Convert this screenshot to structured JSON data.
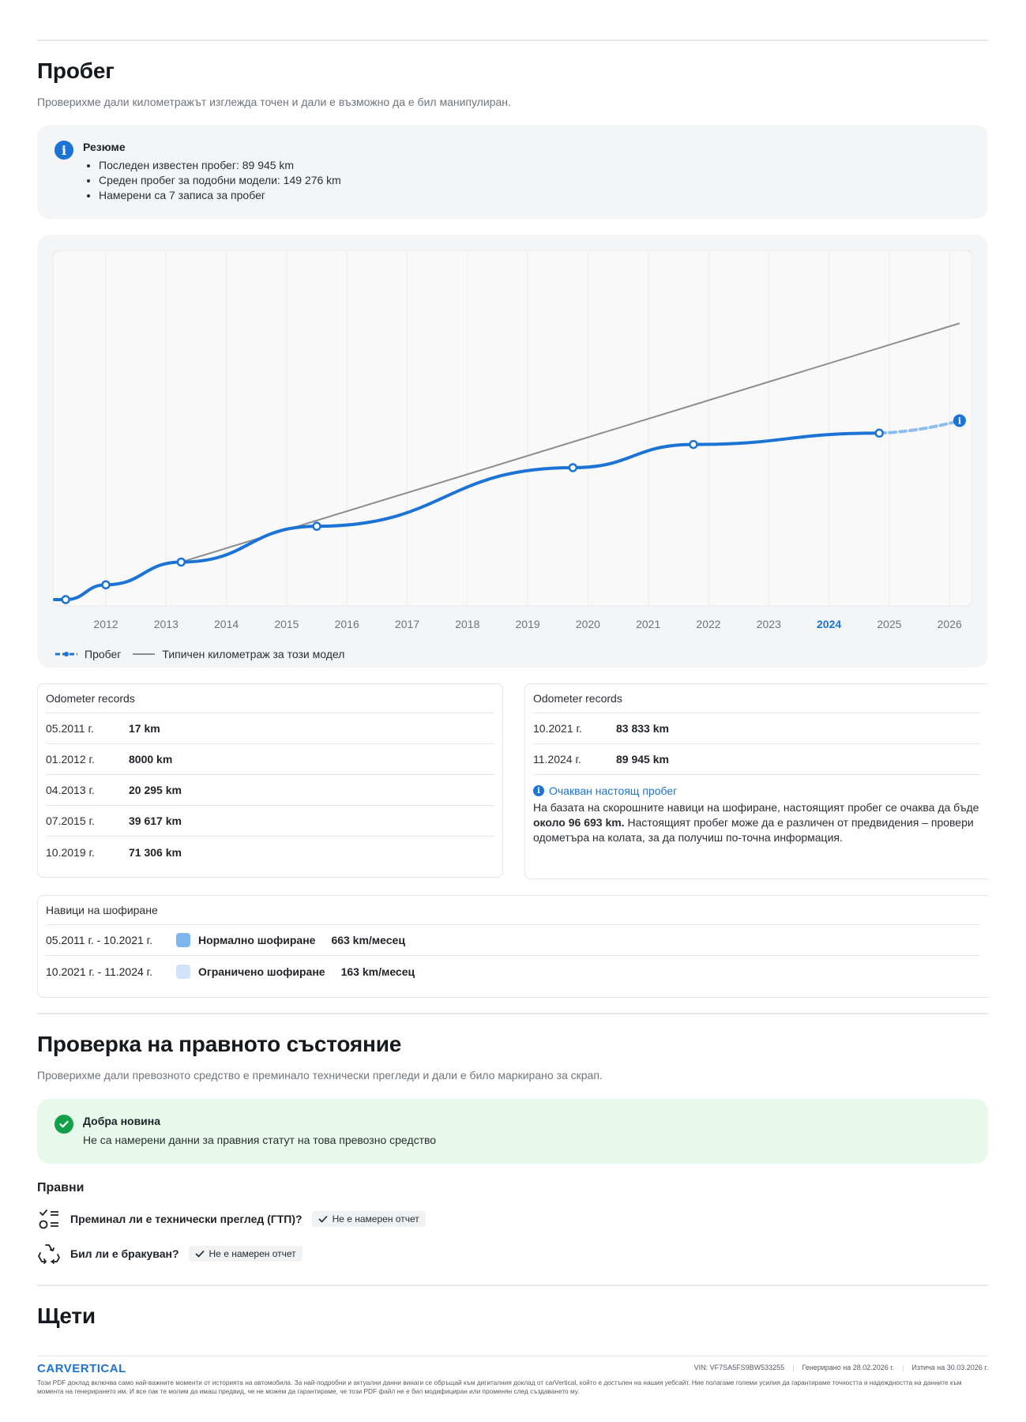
{
  "mileage": {
    "title": "Пробег",
    "subtitle": "Проверихме дали километражът изглежда точен и дали е възможно да е бил манипулиран.",
    "summary": {
      "title": "Резюме",
      "items": [
        "Последен известен пробег: 89 945 km",
        "Среден пробег за подобни модели: 149 276 km",
        "Намерени са 7 записа за пробег"
      ]
    },
    "chart_data": {
      "type": "line",
      "x_ticks": [
        "2012",
        "2013",
        "2014",
        "2015",
        "2016",
        "2017",
        "2018",
        "2019",
        "2020",
        "2021",
        "2022",
        "2023",
        "2024",
        "2025",
        "2026"
      ],
      "highlight_tick": "2024",
      "grid": true,
      "legend_placement": "bottom-left",
      "series": [
        {
          "name": "Пробег",
          "color": "#1c73d6",
          "points": [
            {
              "x": "2011-05",
              "y": 17
            },
            {
              "x": "2012-01",
              "y": 8000
            },
            {
              "x": "2013-04",
              "y": 20295
            },
            {
              "x": "2015-07",
              "y": 39617
            },
            {
              "x": "2019-10",
              "y": 71306
            },
            {
              "x": "2021-10",
              "y": 83833
            },
            {
              "x": "2024-11",
              "y": 89945
            }
          ],
          "projected": {
            "x": "2026-03",
            "y": 96693
          }
        },
        {
          "name": "Типичен километраж за този модел",
          "color": "#8a8d91",
          "points": [
            {
              "x": "2013-04",
              "y": 20295
            },
            {
              "x": "2026-03",
              "y": 149276
            }
          ]
        }
      ]
    },
    "legend": {
      "mileage": "Пробег",
      "typical": "Типичен километраж за този модел"
    },
    "records_left": {
      "title": "Odometer records",
      "rows": [
        {
          "date": "05.2011 г.",
          "value": "17 km"
        },
        {
          "date": "01.2012 г.",
          "value": "8000 km"
        },
        {
          "date": "04.2013 г.",
          "value": "20 295 km"
        },
        {
          "date": "07.2015 г.",
          "value": "39 617 km"
        },
        {
          "date": "10.2019 г.",
          "value": "71 306 km"
        }
      ]
    },
    "records_right": {
      "title": "Odometer records",
      "rows": [
        {
          "date": "10.2021 г.",
          "value": "83 833 km"
        },
        {
          "date": "11.2024 г.",
          "value": "89 945 km"
        }
      ],
      "expected_title": "Очакван настоящ пробег",
      "expected_text_1": "На базата на скорошните навици на шофиране, настоящият пробег се очаква да бъде ",
      "expected_bold": "около 96 693 km.",
      "expected_text_2": " Настоящият пробег може да е различен от предвидения – провери одометъра на колата, за да получиш по-точна информация."
    },
    "habits": {
      "title": "Навици на шофиране",
      "rows": [
        {
          "period": "05.2011 г. - 10.2021 г.",
          "color": "#7fb5ef",
          "label": "Нормално шофиране",
          "value": "663 km/месец"
        },
        {
          "period": "10.2021 г. - 11.2024 г.",
          "color": "#cfe4fb",
          "label": "Ограничено шофиране",
          "value": "163 km/месец"
        }
      ]
    }
  },
  "legal": {
    "title": "Проверка на правното състояние",
    "subtitle": "Проверихме дали превозното средство е преминало технически прегледи и дали е било маркирано за скрап.",
    "good_news": {
      "title": "Добра новина",
      "text": "Не са намерени данни за правния статут на това превозно средство"
    },
    "section_label": "Правни",
    "items": [
      {
        "label": "Преминал ли е технически преглед (ГТП)?",
        "status": "Не е намерен отчет",
        "icon": "checklist-icon"
      },
      {
        "label": "Бил ли е бракуван?",
        "status": "Не е намерен отчет",
        "icon": "recycle-icon"
      }
    ]
  },
  "damage": {
    "title": "Щети"
  },
  "footer": {
    "logo": "CARVERTICAL",
    "vin": "VIN:  VF7SA5FS9BW533255",
    "generated": "Генерирано на  28.02.2026 г.",
    "expires": "Изтича на  30.03.2026 г.",
    "disclaimer": "Този PDF доклад включва само най-важните моменти от историята на автомобила. За най-подробни и актуални данни винаги се обръщай към дигиталния доклад от carVertical, който е достъпен на нашия уебсайт. Ние полагаме големи усилия да гарантираме точността и надеждността на данните към момента на генерирането им. И все пак те молим да имаш предвид, че не можем да гарантираме, че този PDF файл не е бил модифициран или променян след създаването му."
  }
}
